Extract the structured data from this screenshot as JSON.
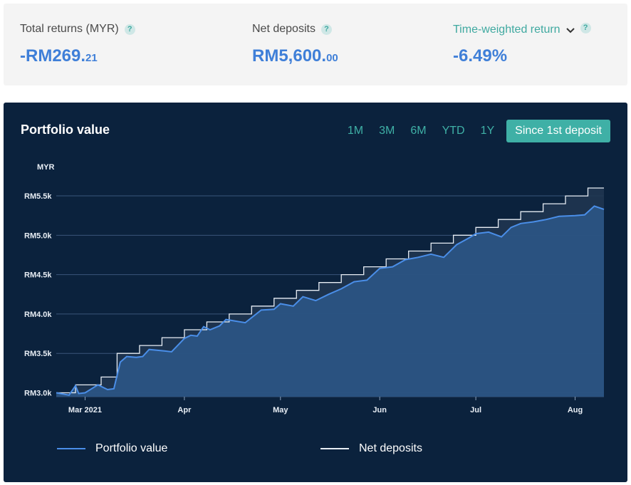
{
  "stats": [
    {
      "label": "Total returns (MYR)",
      "value_main": "-RM269.",
      "value_small": "21",
      "help": "?"
    },
    {
      "label": "Net deposits",
      "value_main": "RM5,600.",
      "value_small": "00",
      "help": "?"
    },
    {
      "label": "Time-weighted return",
      "value_main": "-6.49%",
      "value_small": "",
      "help": "?",
      "dropdown_icon": "chevron-down-icon"
    }
  ],
  "panel": {
    "title": "Portfolio value",
    "ranges": [
      "1M",
      "3M",
      "6M",
      "YTD",
      "1Y",
      "Since 1st deposit"
    ],
    "active_range": "Since 1st deposit"
  },
  "colors": {
    "accent": "#3fb0a6",
    "value_blue": "#3f7fd8",
    "portfolio_line": "#4a8ee8",
    "deposit_line": "#e8eef5",
    "panel_bg": "#0b223d"
  },
  "chart_data": {
    "type": "area",
    "ylabel": "MYR",
    "ylim": [
      2950,
      5600
    ],
    "y_ticks": [
      3000,
      3500,
      4000,
      4500,
      5000,
      5500
    ],
    "y_tick_labels": [
      "RM3.0k",
      "RM3.5k",
      "RM4.0k",
      "RM4.5k",
      "RM5.0k",
      "RM5.5k"
    ],
    "x_range": [
      "2021-02-20",
      "2021-08-10"
    ],
    "x_ticks": [
      "2021-03-01",
      "2021-04-01",
      "2021-05-01",
      "2021-06-01",
      "2021-07-01",
      "2021-08-01"
    ],
    "x_tick_labels": [
      "Mar 2021",
      "Apr",
      "May",
      "Jun",
      "Jul",
      "Aug"
    ],
    "grid": true,
    "legend_position": "bottom",
    "series": [
      {
        "name": "Portfolio value",
        "x": [
          "2021-02-20",
          "2021-02-24",
          "2021-02-26",
          "2021-02-27",
          "2021-03-01",
          "2021-03-05",
          "2021-03-08",
          "2021-03-10",
          "2021-03-12",
          "2021-03-14",
          "2021-03-17",
          "2021-03-19",
          "2021-03-21",
          "2021-03-26",
          "2021-03-28",
          "2021-04-01",
          "2021-04-03",
          "2021-04-05",
          "2021-04-07",
          "2021-04-09",
          "2021-04-12",
          "2021-04-14",
          "2021-04-17",
          "2021-04-20",
          "2021-04-25",
          "2021-04-29",
          "2021-05-01",
          "2021-05-05",
          "2021-05-08",
          "2021-05-12",
          "2021-05-16",
          "2021-05-20",
          "2021-05-24",
          "2021-05-28",
          "2021-06-01",
          "2021-06-05",
          "2021-06-09",
          "2021-06-13",
          "2021-06-17",
          "2021-06-21",
          "2021-06-25",
          "2021-06-29",
          "2021-07-01",
          "2021-07-05",
          "2021-07-09",
          "2021-07-12",
          "2021-07-15",
          "2021-07-19",
          "2021-07-23",
          "2021-07-27",
          "2021-08-01",
          "2021-08-04",
          "2021-08-07",
          "2021-08-10"
        ],
        "values": [
          3000,
          2970,
          3090,
          2990,
          3000,
          3100,
          3040,
          3050,
          3390,
          3460,
          3450,
          3460,
          3550,
          3530,
          3520,
          3690,
          3730,
          3720,
          3840,
          3800,
          3850,
          3930,
          3910,
          3890,
          4050,
          4060,
          4130,
          4100,
          4220,
          4170,
          4250,
          4320,
          4410,
          4430,
          4580,
          4600,
          4690,
          4720,
          4760,
          4720,
          4880,
          4970,
          5020,
          5040,
          4980,
          5100,
          5150,
          5170,
          5200,
          5240,
          5250,
          5260,
          5370,
          5330
        ]
      },
      {
        "name": "Net deposits",
        "x": [
          "2021-02-20",
          "2021-02-26",
          "2021-03-06",
          "2021-03-11",
          "2021-03-18",
          "2021-03-25",
          "2021-04-01",
          "2021-04-08",
          "2021-04-15",
          "2021-04-22",
          "2021-04-29",
          "2021-05-06",
          "2021-05-13",
          "2021-05-20",
          "2021-05-27",
          "2021-06-03",
          "2021-06-10",
          "2021-06-17",
          "2021-06-24",
          "2021-07-01",
          "2021-07-08",
          "2021-07-15",
          "2021-07-22",
          "2021-07-29",
          "2021-08-05",
          "2021-08-10"
        ],
        "values": [
          3000,
          3100,
          3200,
          3500,
          3600,
          3700,
          3800,
          3900,
          4000,
          4100,
          4200,
          4300,
          4400,
          4500,
          4600,
          4700,
          4800,
          4900,
          5000,
          5100,
          5200,
          5300,
          5400,
          5500,
          5600,
          5600
        ]
      }
    ]
  }
}
